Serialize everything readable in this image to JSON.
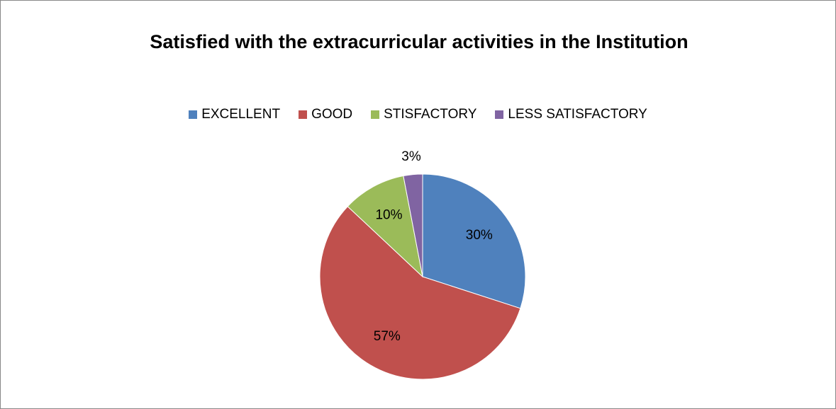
{
  "chart_data": {
    "type": "pie",
    "title": "Satisfied with the extracurricular activities in the Institution",
    "categories": [
      "EXCELLENT",
      "GOOD",
      "STISFACTORY",
      "LESS SATISFACTORY"
    ],
    "values": [
      30,
      57,
      10,
      3
    ],
    "value_labels": [
      "30%",
      "57%",
      "10%",
      "3%"
    ],
    "colors": [
      "#4f81bd",
      "#c0504d",
      "#9bbb59",
      "#8064a2"
    ],
    "legend": "top"
  }
}
